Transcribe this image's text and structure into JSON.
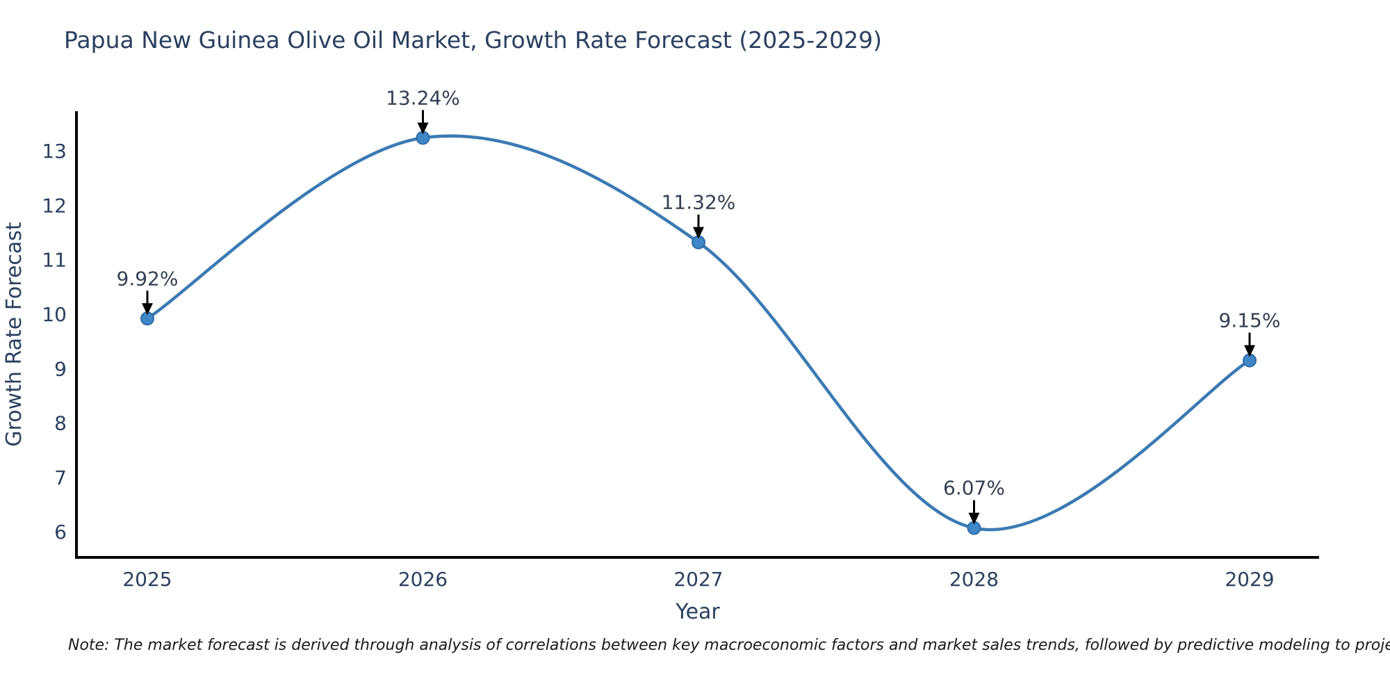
{
  "title": "Papua New Guinea Olive Oil Market, Growth Rate Forecast (2025-2029)",
  "note": "Note: The market forecast is derived through analysis of correlations between key macroeconomic factors and market sales trends, followed by predictive modeling to project future sales",
  "chart_data": {
    "type": "line",
    "title": "Papua New Guinea Olive Oil Market, Growth Rate Forecast (2025-2029)",
    "xlabel": "Year",
    "ylabel": "Growth Rate Forecast",
    "categories": [
      "2025",
      "2026",
      "2027",
      "2028",
      "2029"
    ],
    "series": [
      {
        "name": "Growth Rate Forecast",
        "values": [
          9.92,
          13.24,
          11.32,
          6.07,
          9.15
        ],
        "point_labels": [
          "9.92%",
          "13.24%",
          "11.32%",
          "6.07%",
          "9.15%"
        ]
      }
    ],
    "yticks": [
      6,
      7,
      8,
      9,
      10,
      11,
      12,
      13
    ],
    "ylim": [
      5.53,
      13.73
    ],
    "line_shape": "spline",
    "grid": false,
    "legend_position": "none",
    "colors": {
      "line": "#3a7ab3",
      "marker_fill": "#3f87c7",
      "marker_edge": "#2e6ba8",
      "axis": "#000000",
      "tick_text": "#2a3f5f",
      "axis_title_text": "#2a3f5f",
      "annotation_text": "#333f52",
      "annotation_arrow": "#000000"
    }
  }
}
